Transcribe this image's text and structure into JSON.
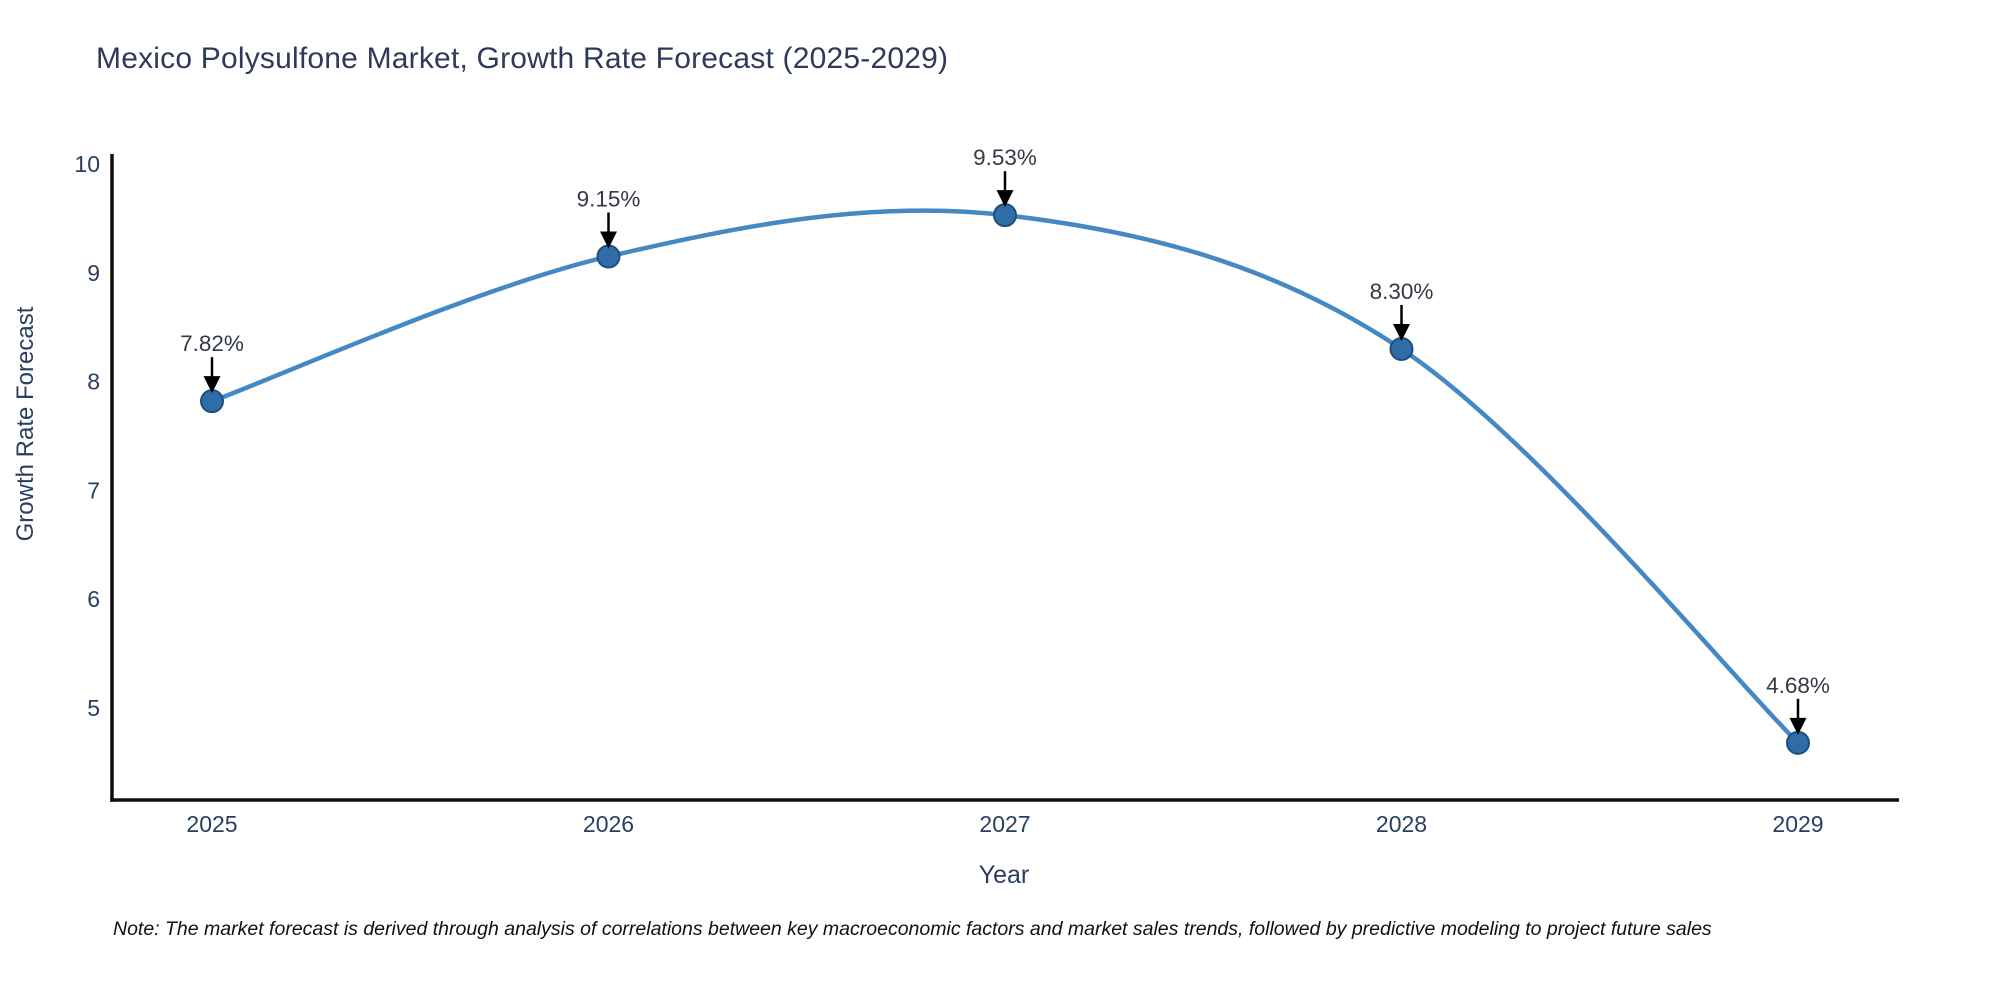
{
  "title": "Mexico Polysulfone Market, Growth Rate Forecast (2025-2029)",
  "note": "Note: The market forecast is derived through analysis of correlations between key macroeconomic factors and market sales trends, followed by predictive modeling to project future sales",
  "chart_data": {
    "type": "line",
    "title": "Mexico Polysulfone Market, Growth Rate Forecast (2025-2029)",
    "xlabel": "Year",
    "ylabel": "Growth Rate Forecast",
    "categories": [
      "2025",
      "2026",
      "2027",
      "2028",
      "2029"
    ],
    "values": [
      7.82,
      9.15,
      9.53,
      8.3,
      4.68
    ],
    "point_labels": [
      "7.82%",
      "9.15%",
      "9.53%",
      "8.30%",
      "4.68%"
    ],
    "y_ticks": [
      10,
      9,
      8,
      7,
      6,
      5
    ],
    "ylim": [
      4.1,
      10.1
    ],
    "grid": false,
    "legend": "none",
    "line_shape": "smooth",
    "marker": "circle",
    "annotations": "black arrows pointing down to each data point",
    "colors": {
      "line": "#4489c4",
      "marker_fill": "#2e6da8",
      "marker_edge": "#1d4f7c",
      "arrow": "#000000",
      "axis_spine": "#0f0f0f",
      "tick_text": "#2a3f5f",
      "annotation_text": "#333a45",
      "title_text": "#2e3a59",
      "axis_title_text": "#2a3f5f",
      "note_text": "#111111",
      "background": "#ffffff"
    }
  }
}
